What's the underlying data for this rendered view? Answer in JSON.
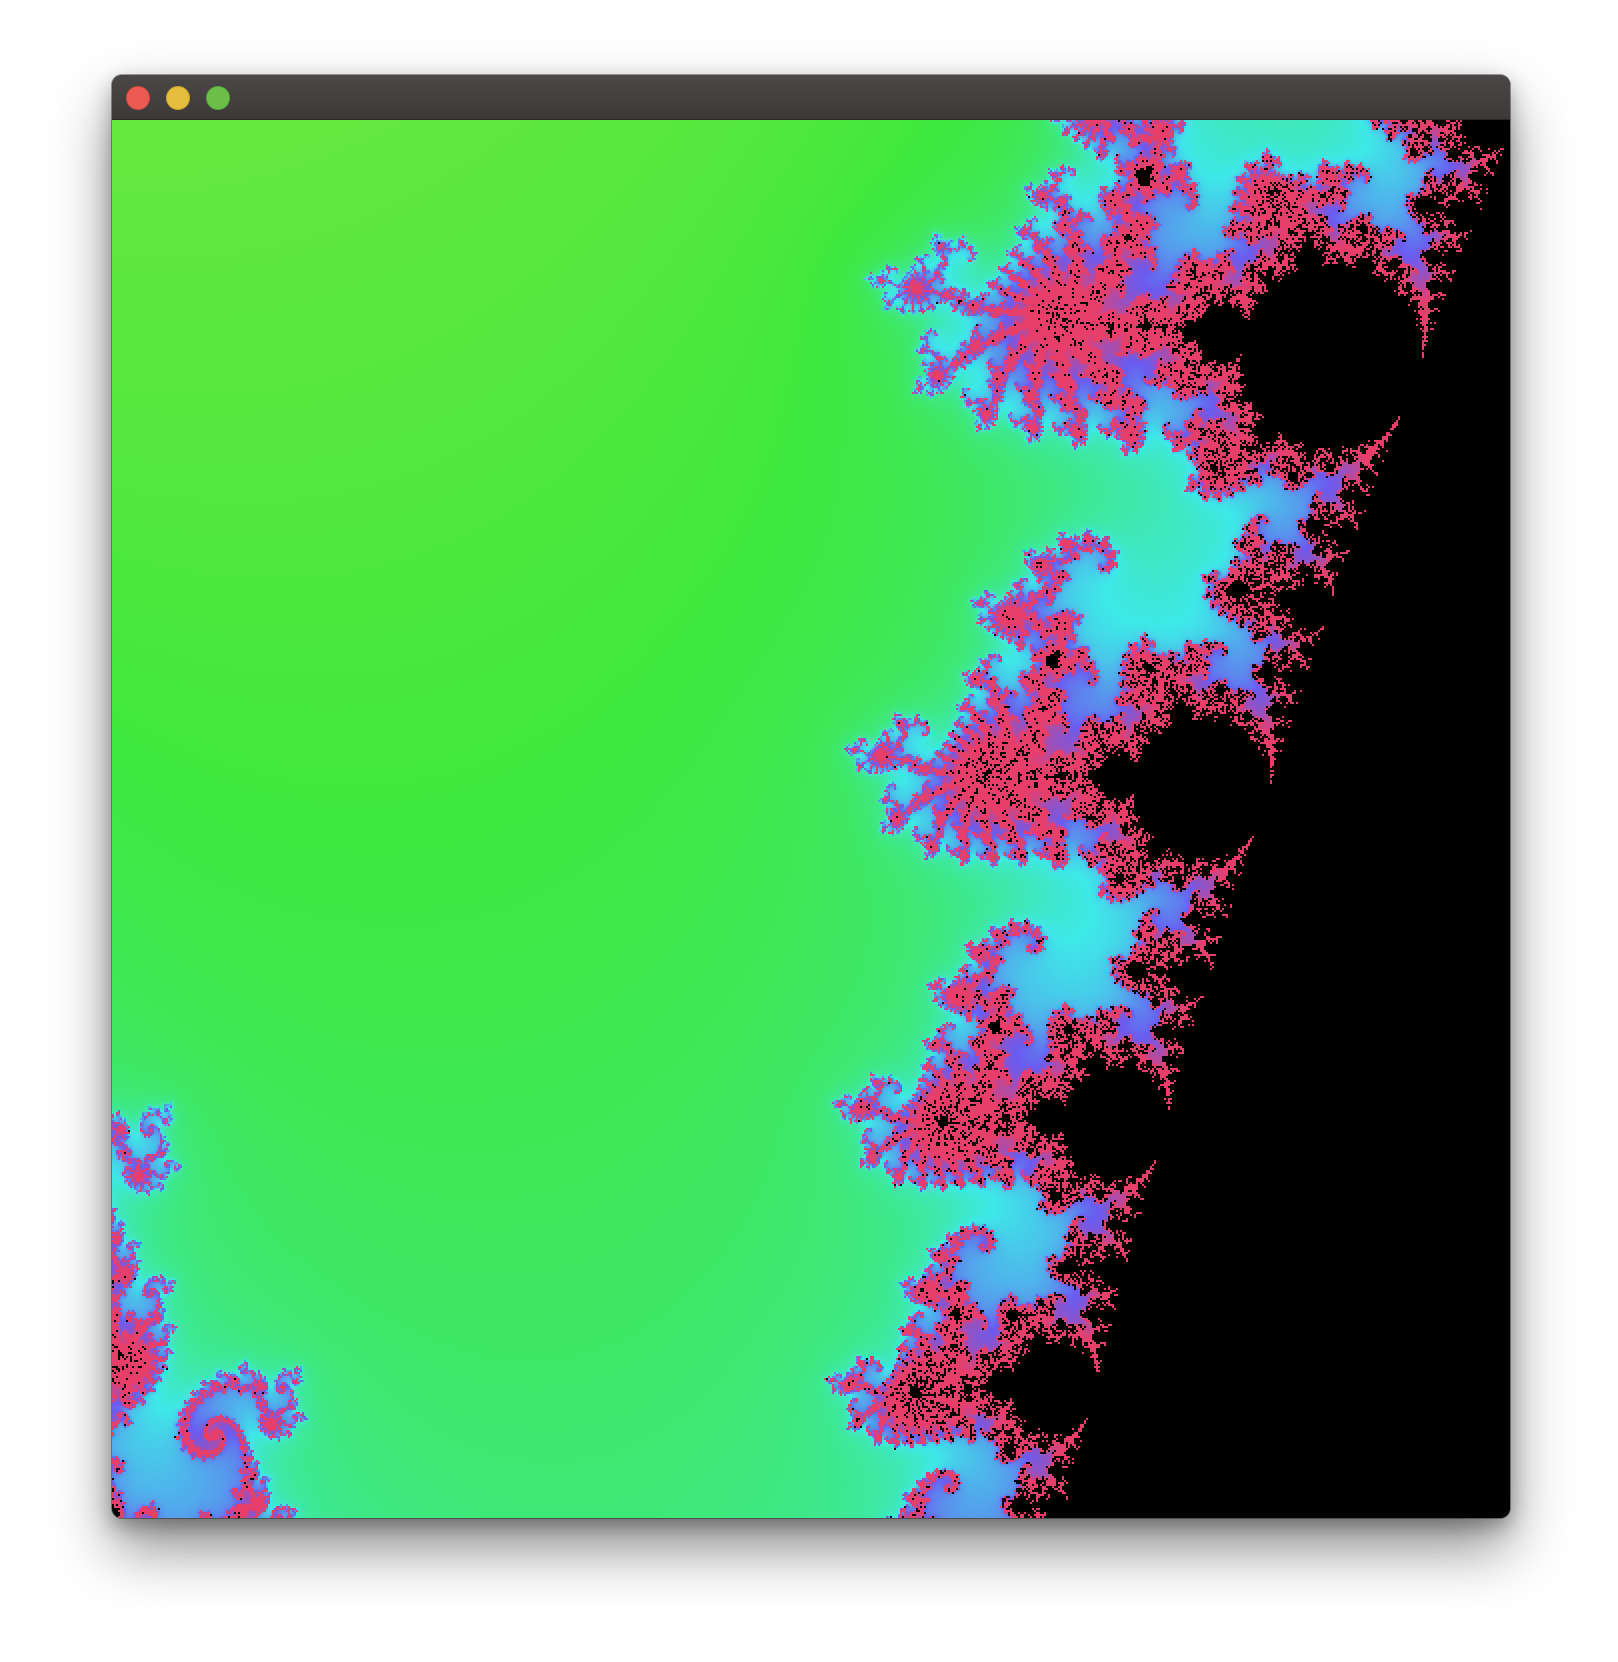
{
  "window": {
    "controls": [
      {
        "name": "close",
        "color": "#ec5b53"
      },
      {
        "name": "minimize",
        "color": "#e4bd3e"
      },
      {
        "name": "maximize",
        "color": "#6cc04a"
      }
    ]
  },
  "fractal": {
    "type": "mandelbrot",
    "set_color": "#000000",
    "palette": [
      "#e88a40",
      "#e8e83e",
      "#3ee83e",
      "#3ee8e8",
      "#6a5cf0",
      "#e83e6a"
    ]
  }
}
